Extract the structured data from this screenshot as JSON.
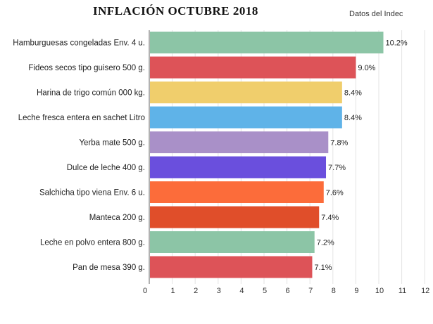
{
  "chart_data": {
    "type": "bar",
    "orientation": "horizontal",
    "title": "INFLACIÓN  OCTUBRE  2018",
    "source": "Datos del Indec",
    "categories": [
      "Hamburguesas congeladas Env. 4 u.",
      "Fideos secos tipo guisero 500 g.",
      "Harina de trigo común 000 kg.",
      "Leche fresca entera en sachet Litro",
      "Yerba mate 500 g.",
      "Dulce de leche 400 g.",
      "Salchicha tipo viena Env. 6 u.",
      "Manteca 200 g.",
      "Leche en polvo entera 800 g.",
      "Pan de mesa 390 g."
    ],
    "values": [
      10.2,
      9.0,
      8.4,
      8.4,
      7.8,
      7.7,
      7.6,
      7.4,
      7.2,
      7.1
    ],
    "value_labels": [
      "10.2%",
      "9.0%",
      "8.4%",
      "8.4%",
      "7.8%",
      "7.7%",
      "7.6%",
      "7.4%",
      "7.2%",
      "7.1%"
    ],
    "colors": [
      "#8cc5a6",
      "#dd5358",
      "#f0ce6c",
      "#5fb3e8",
      "#a990c8",
      "#6a4fdd",
      "#fc6c3a",
      "#e04e2a",
      "#8cc5a6",
      "#dd5358"
    ],
    "xlim": [
      0,
      12
    ],
    "xticks": [
      "0",
      "1",
      "2",
      "3",
      "4",
      "5",
      "6",
      "7",
      "8",
      "9",
      "10",
      "11",
      "12"
    ],
    "grid": true,
    "legend": "none"
  }
}
